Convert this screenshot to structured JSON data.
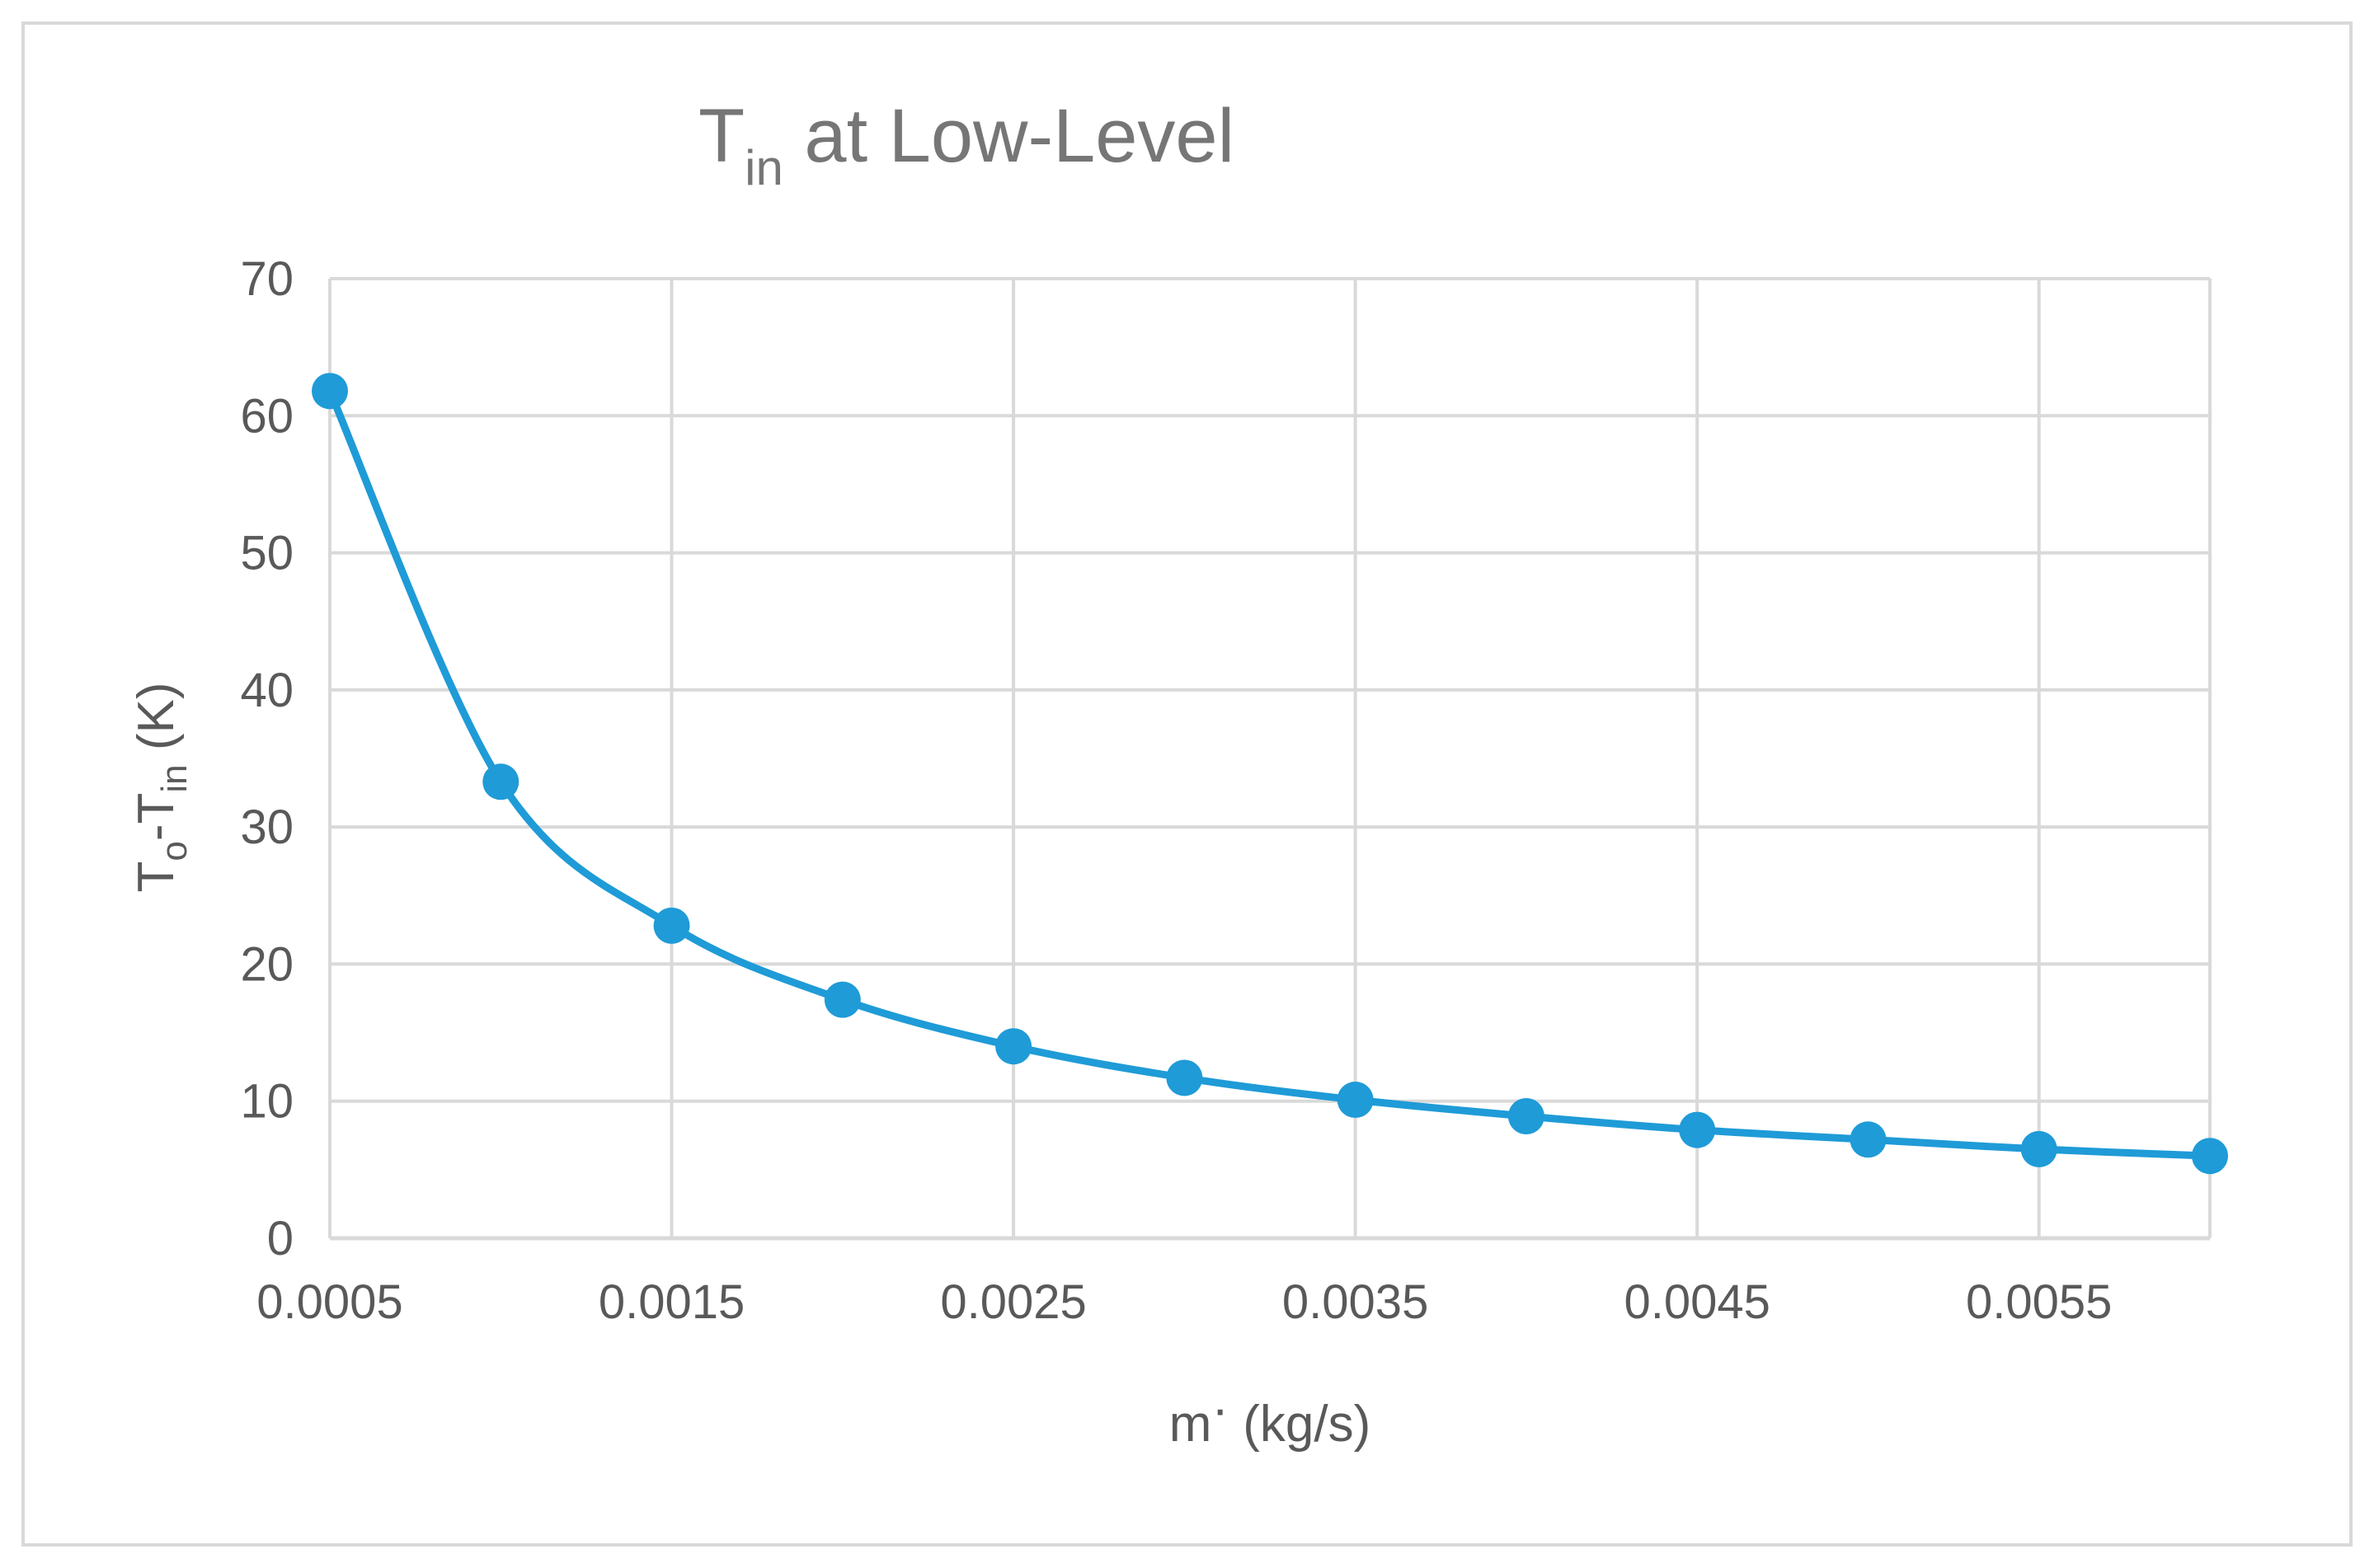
{
  "chart_data": {
    "type": "line",
    "title": {
      "main": "T",
      "sub": "in",
      "rest": " at Low-Level"
    },
    "xlabel": {
      "main": "m",
      "sup": "·",
      "rest": " (kg/s)"
    },
    "ylabel": {
      "t1": "T",
      "s1": "o",
      "t2": "-T",
      "s2": "in",
      "t3": " (K)"
    },
    "xlim": [
      0.0005,
      0.006
    ],
    "ylim": [
      0,
      70
    ],
    "x_tick_values": [
      0.0005,
      0.0015,
      0.0025,
      0.0035,
      0.0045,
      0.0055
    ],
    "x_tick_labels": [
      "0.0005",
      "0.0015",
      "0.0025",
      "0.0035",
      "0.0045",
      "0.0055"
    ],
    "x_gridlines": [
      0.0005,
      0.0015,
      0.0025,
      0.0035,
      0.0045,
      0.0055,
      0.006
    ],
    "y_ticks": [
      0,
      10,
      20,
      30,
      40,
      50,
      60,
      70
    ],
    "y_tick_labels": [
      "0",
      "10",
      "20",
      "30",
      "40",
      "50",
      "60",
      "70"
    ],
    "grid": true,
    "smooth": true,
    "series": [
      {
        "name": "T_o - T_in",
        "color": "#1f9bd7",
        "x": [
          0.0005,
          0.001,
          0.0015,
          0.002,
          0.0025,
          0.003,
          0.0035,
          0.004,
          0.0045,
          0.005,
          0.0055,
          0.006
        ],
        "y": [
          61.8,
          33.3,
          22.8,
          17.4,
          14.0,
          11.7,
          10.1,
          8.9,
          7.9,
          7.2,
          6.5,
          6.0
        ]
      }
    ],
    "colors": {
      "grid": "#d9d9d9",
      "text": "#595959",
      "title": "#767676"
    }
  }
}
